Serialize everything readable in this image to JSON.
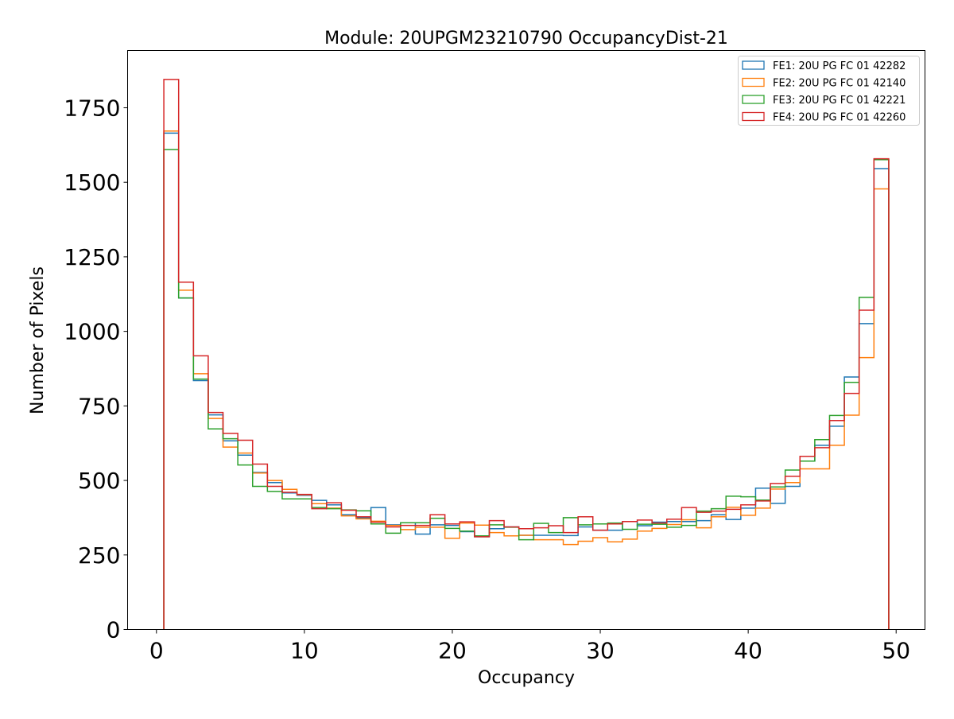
{
  "chart_data": {
    "type": "histogram-step",
    "title": "Module: 20UPGM23210790 OccupancyDist-21",
    "xlabel": "Occupancy",
    "ylabel": "Number of Pixels",
    "xlim": [
      -1.95,
      51.95
    ],
    "ylim": [
      0,
      1942
    ],
    "xticks": [
      0,
      10,
      20,
      30,
      40,
      50
    ],
    "yticks": [
      0,
      250,
      500,
      750,
      1000,
      1250,
      1500,
      1750
    ],
    "bin_edges_start": 0.5,
    "bin_width": 1,
    "legend_position": "top-right",
    "grid": false,
    "series": [
      {
        "name": "FE1: 20U PG FC 01 42282",
        "color": "#1f77b4",
        "values": [
          1665,
          1112,
          835,
          720,
          633,
          585,
          527,
          493,
          458,
          450,
          433,
          418,
          385,
          374,
          409,
          351,
          358,
          320,
          351,
          349,
          328,
          311,
          338,
          344,
          316,
          316,
          316,
          315,
          344,
          333,
          333,
          362,
          348,
          360,
          362,
          362,
          365,
          385,
          369,
          407,
          474,
          423,
          480,
          565,
          618,
          682,
          847,
          1026,
          1546
        ]
      },
      {
        "name": "FE2: 20U PG FC 01 42140",
        "color": "#ff7f0e",
        "values": [
          1672,
          1138,
          858,
          708,
          612,
          592,
          525,
          500,
          470,
          452,
          422,
          407,
          381,
          371,
          363,
          349,
          335,
          343,
          343,
          306,
          357,
          350,
          325,
          314,
          316,
          301,
          301,
          285,
          296,
          308,
          294,
          303,
          330,
          339,
          352,
          368,
          341,
          378,
          410,
          383,
          407,
          471,
          493,
          539,
          539,
          618,
          719,
          912,
          1478
        ]
      },
      {
        "name": "FE3: 20U PG FC 01 42221",
        "color": "#2ca02c",
        "values": [
          1610,
          1112,
          840,
          673,
          640,
          552,
          480,
          463,
          438,
          438,
          409,
          405,
          401,
          398,
          354,
          323,
          358,
          358,
          373,
          339,
          330,
          314,
          351,
          343,
          301,
          356,
          325,
          375,
          351,
          354,
          357,
          336,
          353,
          353,
          343,
          349,
          397,
          405,
          447,
          445,
          434,
          478,
          535,
          565,
          637,
          718,
          829,
          1114,
          1576
        ]
      },
      {
        "name": "FE4: 20U PG FC 01 42260",
        "color": "#d62728",
        "values": [
          1845,
          1165,
          918,
          728,
          658,
          635,
          555,
          480,
          460,
          453,
          405,
          425,
          400,
          378,
          360,
          344,
          349,
          349,
          385,
          354,
          361,
          311,
          365,
          344,
          338,
          341,
          348,
          325,
          378,
          333,
          354,
          362,
          367,
          357,
          370,
          409,
          393,
          397,
          403,
          418,
          431,
          490,
          514,
          581,
          610,
          701,
          792,
          1071,
          1579
        ]
      }
    ]
  }
}
